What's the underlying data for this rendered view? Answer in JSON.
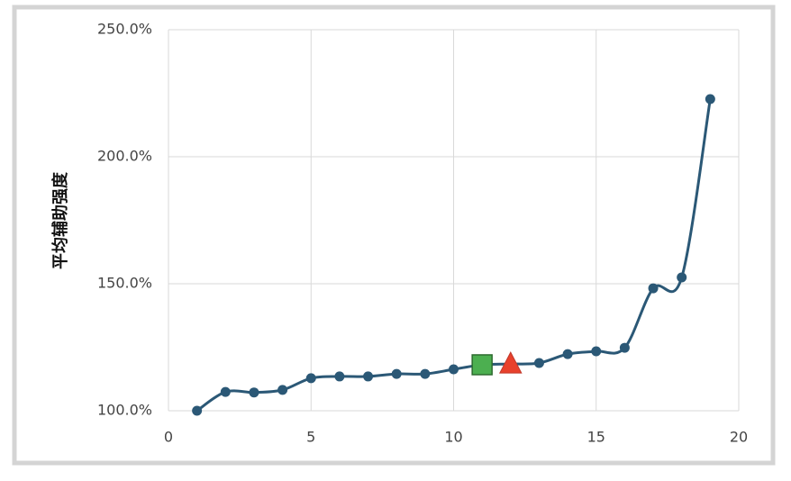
{
  "chart_data": {
    "type": "line",
    "y_label": "平均辅助强度",
    "x": [
      1,
      2,
      3,
      4,
      5,
      6,
      7,
      8,
      9,
      10,
      11,
      12,
      13,
      14,
      15,
      16,
      17,
      18,
      19
    ],
    "series": [
      {
        "color": "#2b5876",
        "values": [
          100,
          107.4,
          107.2,
          108.2,
          112.8,
          113.5,
          113.5,
          114.5,
          114.5,
          116.3,
          118.1,
          118.4,
          118.8,
          122.3,
          123.4,
          124.8,
          148.2,
          152.5,
          222.7
        ]
      }
    ],
    "highlights": [
      {
        "index": 10,
        "shape": "square",
        "color": "#4caf50"
      },
      {
        "index": 11,
        "shape": "triangle",
        "color": "#e8412c"
      }
    ],
    "xlim": [
      0,
      20
    ],
    "xticks": [
      0,
      5,
      10,
      15,
      20
    ],
    "ylim": [
      100,
      250
    ],
    "yticks": [
      {
        "value": 100,
        "label": "100.0%"
      },
      {
        "value": 150,
        "label": "150.0%"
      },
      {
        "value": 200,
        "label": "200.0%"
      },
      {
        "value": 250,
        "label": "250.0%"
      }
    ],
    "grid": true,
    "smooth": true
  }
}
